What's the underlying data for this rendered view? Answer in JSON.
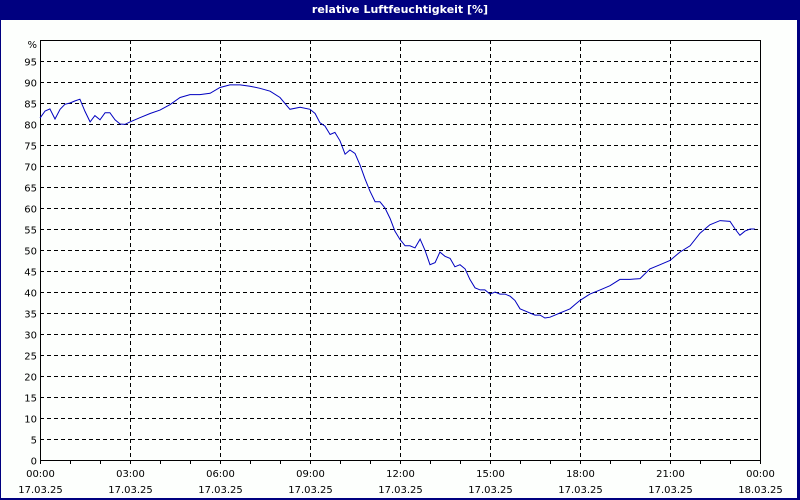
{
  "window": {
    "title": "relative Luftfeuchtigkeit [%]"
  },
  "colors": {
    "frame": "#000080",
    "background": "#fdfffd",
    "line": "#0000c0",
    "grid": "#000000"
  },
  "chart_data": {
    "type": "line",
    "title": "relative Luftfeuchtigkeit [%]",
    "xlabel": "",
    "ylabel": "%",
    "ylim": [
      0,
      100
    ],
    "yticks": [
      0,
      5,
      10,
      15,
      20,
      25,
      30,
      35,
      40,
      45,
      50,
      55,
      60,
      65,
      70,
      75,
      80,
      85,
      90,
      95
    ],
    "y_unit_label": "%",
    "xticks": [
      {
        "time": "00:00",
        "date": "17.03.25"
      },
      {
        "time": "03:00",
        "date": "17.03.25"
      },
      {
        "time": "06:00",
        "date": "17.03.25"
      },
      {
        "time": "09:00",
        "date": "17.03.25"
      },
      {
        "time": "12:00",
        "date": "17.03.25"
      },
      {
        "time": "15:00",
        "date": "17.03.25"
      },
      {
        "time": "18:00",
        "date": "17.03.25"
      },
      {
        "time": "21:00",
        "date": "17.03.25"
      },
      {
        "time": "00:00",
        "date": "18.03.25"
      }
    ],
    "grid": true,
    "grid_style": "dashed",
    "legend": "none",
    "series": [
      {
        "name": "relative Luftfeuchtigkeit",
        "x_hours": [
          0,
          0.17,
          0.33,
          0.5,
          0.67,
          0.83,
          1.0,
          1.17,
          1.33,
          1.5,
          1.67,
          1.83,
          2.0,
          2.17,
          2.33,
          2.5,
          2.67,
          2.83,
          3.0,
          3.33,
          3.67,
          4.0,
          4.33,
          4.67,
          5.0,
          5.33,
          5.67,
          6.0,
          6.33,
          6.67,
          7.0,
          7.33,
          7.67,
          8.0,
          8.33,
          8.67,
          9.0,
          9.17,
          9.33,
          9.5,
          9.67,
          9.83,
          10.0,
          10.17,
          10.33,
          10.5,
          10.67,
          10.83,
          11.0,
          11.17,
          11.33,
          11.5,
          11.67,
          11.83,
          12.0,
          12.17,
          12.33,
          12.5,
          12.67,
          12.83,
          13.0,
          13.17,
          13.33,
          13.5,
          13.67,
          13.83,
          14.0,
          14.17,
          14.33,
          14.5,
          14.67,
          14.83,
          15.0,
          15.17,
          15.33,
          15.5,
          15.67,
          15.83,
          16.0,
          16.17,
          16.33,
          16.5,
          16.67,
          16.83,
          17.0,
          17.17,
          17.33,
          17.5,
          17.67,
          17.83,
          18.0,
          18.33,
          18.67,
          19.0,
          19.33,
          19.67,
          20.0,
          20.33,
          20.67,
          21.0,
          21.33,
          21.67,
          22.0,
          22.33,
          22.67,
          23.0,
          23.17,
          23.33,
          23.5,
          23.67,
          23.83,
          24.0
        ],
        "values": [
          81.4,
          83.1,
          83.6,
          81.2,
          83.5,
          84.7,
          85.0,
          85.5,
          85.9,
          83.0,
          80.5,
          82.0,
          81.0,
          82.7,
          82.7,
          81.0,
          80.0,
          79.9,
          80.5,
          81.5,
          82.5,
          83.3,
          84.6,
          86.3,
          87.0,
          87.0,
          87.3,
          88.7,
          89.3,
          89.3,
          89.0,
          88.5,
          87.8,
          86.3,
          83.5,
          84.0,
          83.5,
          82.5,
          80.3,
          79.5,
          77.5,
          78.0,
          76.0,
          72.8,
          73.8,
          73.0,
          70.2,
          67.0,
          64.0,
          61.5,
          61.5,
          60.0,
          57.5,
          54.5,
          52.5,
          51.0,
          51.0,
          50.5,
          52.6,
          50.0,
          46.5,
          47.0,
          49.5,
          48.5,
          48.0,
          46.0,
          46.5,
          45.5,
          43.0,
          41.0,
          40.5,
          40.5,
          39.5,
          40.0,
          39.5,
          39.5,
          39.0,
          38.0,
          36.0,
          35.5,
          35.0,
          34.5,
          34.5,
          33.8,
          34.0,
          34.5,
          35.0,
          35.5,
          36.0,
          37.0,
          38.0,
          39.5,
          40.5,
          41.5,
          43.0,
          43.0,
          43.2,
          45.5,
          46.5,
          47.5,
          49.5,
          51.0,
          54.0,
          56.0,
          57.0,
          56.8,
          55.0,
          53.5,
          54.5,
          55.0,
          55.0
        ]
      }
    ]
  }
}
